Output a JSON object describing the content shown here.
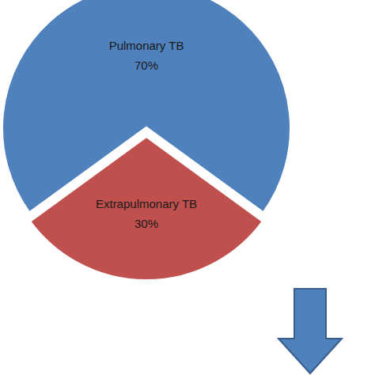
{
  "chart_data": {
    "type": "pie",
    "categories": [
      "Pulmonary TB",
      "Extrapulmonary TB"
    ],
    "values": [
      70,
      30
    ],
    "value_labels": [
      "70%",
      "30%"
    ],
    "colors": [
      "#4f81bd",
      "#c0504d"
    ],
    "data_labels": true
  }
}
